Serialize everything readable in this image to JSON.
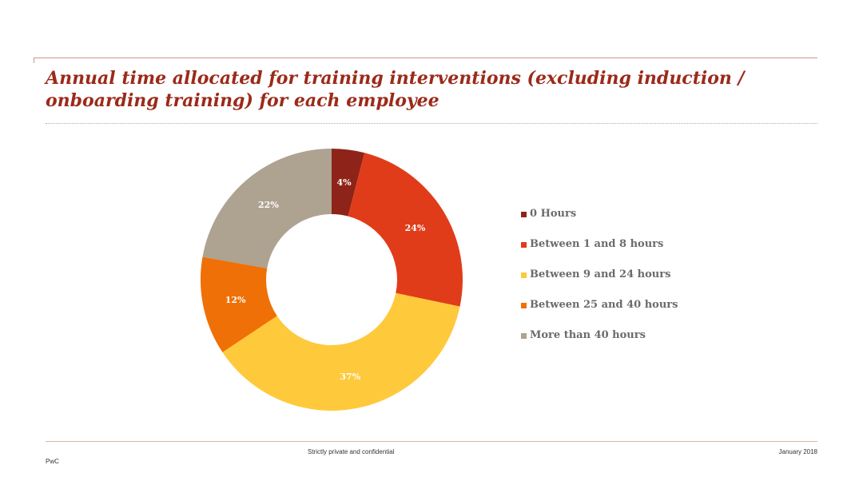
{
  "slide": {
    "title": "Annual time allocated for training interventions (excluding induction / onboarding training) for each employee",
    "footer_center": "Strictly private and confidential",
    "footer_right": "January 2018",
    "footer_left": "PwC"
  },
  "chart_data": {
    "type": "pie",
    "variant": "donut",
    "title": "",
    "categories": [
      "0 Hours",
      "Between 1 and 8 hours",
      "Between 9 and 24 hours",
      "Between 25 and 40 hours",
      "More than 40 hours"
    ],
    "values": [
      4,
      24,
      37,
      12,
      22
    ],
    "data_labels": [
      "4%",
      "24%",
      "37%",
      "12%",
      "22%"
    ],
    "colors": [
      "#8e2419",
      "#e03c1a",
      "#ffc93c",
      "#ef7006",
      "#aea291"
    ],
    "legend_position": "right"
  }
}
